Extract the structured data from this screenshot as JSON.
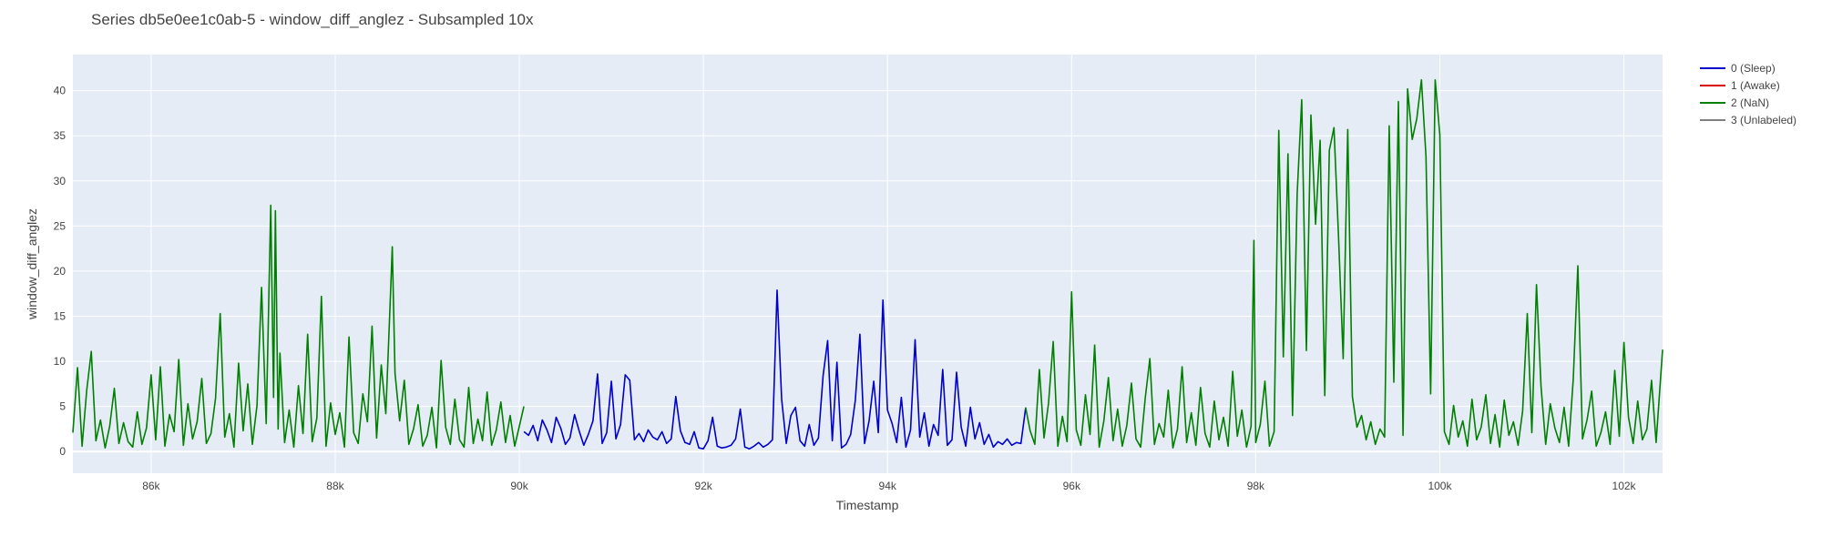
{
  "chart_data": {
    "type": "line",
    "title": "Series db5e0ee1c0ab-5 - window_diff_anglez - Subsampled 10x",
    "xlabel": "Timestamp",
    "ylabel": "window_diff_anglez",
    "xlim": [
      85150,
      102420
    ],
    "ylim": [
      -2.4,
      44
    ],
    "xticks": [
      86000,
      88000,
      90000,
      92000,
      94000,
      96000,
      98000,
      100000,
      102000
    ],
    "xtick_labels": [
      "86k",
      "88k",
      "90k",
      "92k",
      "94k",
      "96k",
      "98k",
      "100k",
      "102k"
    ],
    "yticks": [
      0,
      5,
      10,
      15,
      20,
      25,
      30,
      35,
      40
    ],
    "ytick_labels": [
      "0",
      "5",
      "10",
      "15",
      "20",
      "25",
      "30",
      "35",
      "40"
    ],
    "grid": true,
    "legend_position": "top-right, outside plot",
    "background_color": "#e5ecf6",
    "legend": [
      {
        "label": "0 (Sleep)",
        "color": "#0000cc"
      },
      {
        "label": "1 (Awake)",
        "color": "#dd0000"
      },
      {
        "label": "2 (NaN)",
        "color": "#008000"
      },
      {
        "label": "3 (Unlabeled)",
        "color": "#808080"
      }
    ],
    "series": [
      {
        "name": "2 (NaN)",
        "color": "#008000",
        "x": [
          85150,
          85200,
          85250,
          85300,
          85350,
          85400,
          85450,
          85500,
          85550,
          85600,
          85650,
          85700,
          85750,
          85800,
          85850,
          85900,
          85950,
          86000,
          86050,
          86100,
          86150,
          86200,
          86250,
          86300,
          86350,
          86400,
          86450,
          86500,
          86550,
          86600,
          86650,
          86700,
          86750,
          86800,
          86850,
          86900,
          86950,
          87000,
          87050,
          87100,
          87150,
          87200,
          87250,
          87300,
          87330,
          87350,
          87380,
          87400,
          87450,
          87500,
          87550,
          87600,
          87650,
          87700,
          87750,
          87800,
          87850,
          87900,
          87950,
          88000,
          88050,
          88100,
          88150,
          88200,
          88250,
          88300,
          88350,
          88400,
          88450,
          88500,
          88550,
          88600,
          88620,
          88650,
          88700,
          88750,
          88800,
          88850,
          88900,
          88950,
          89000,
          89050,
          89100,
          89150,
          89200,
          89250,
          89300,
          89350,
          89400,
          89450,
          89500,
          89550,
          89600,
          89650,
          89700,
          89750,
          89800,
          89850,
          89900,
          89950,
          90050
        ],
        "y": [
          2.1,
          9.3,
          0.6,
          6.8,
          11.1,
          1.2,
          3.5,
          0.4,
          2.8,
          7.0,
          0.9,
          3.2,
          1.1,
          0.5,
          4.4,
          0.8,
          2.6,
          8.5,
          1.3,
          9.4,
          0.6,
          4.1,
          2.2,
          10.2,
          0.7,
          5.3,
          1.4,
          3.3,
          8.1,
          0.9,
          2.0,
          5.9,
          15.3,
          1.6,
          4.2,
          0.5,
          9.8,
          2.3,
          7.5,
          0.8,
          5.1,
          18.2,
          3.1,
          27.3,
          6.0,
          26.7,
          2.5,
          10.9,
          1.0,
          4.6,
          0.5,
          7.3,
          2.0,
          13.0,
          1.1,
          3.7,
          17.2,
          0.6,
          5.4,
          1.9,
          4.3,
          0.5,
          12.7,
          2.1,
          0.9,
          6.4,
          3.3,
          13.9,
          1.5,
          9.6,
          4.2,
          17.3,
          22.7,
          8.7,
          3.4,
          7.9,
          0.8,
          2.5,
          5.2,
          0.6,
          1.8,
          4.9,
          0.4,
          10.1,
          2.7,
          0.8,
          5.8,
          1.3,
          0.5,
          7.1,
          0.9,
          3.6,
          1.2,
          6.6,
          0.7,
          2.4,
          5.5,
          1.0,
          4.0,
          0.6,
          5.0
        ]
      },
      {
        "name": "0 (Sleep)",
        "color": "#0000cc",
        "x": [
          90050,
          90100,
          90150,
          90200,
          90250,
          90300,
          90350,
          90400,
          90450,
          90500,
          90550,
          90600,
          90650,
          90700,
          90750,
          90800,
          90850,
          90900,
          90950,
          91000,
          91050,
          91100,
          91150,
          91200,
          91250,
          91300,
          91350,
          91400,
          91450,
          91500,
          91550,
          91600,
          91650,
          91700,
          91750,
          91800,
          91850,
          91900,
          91950,
          92000,
          92050,
          92100,
          92150,
          92200,
          92250,
          92300,
          92350,
          92400,
          92450,
          92500,
          92550,
          92600,
          92650,
          92700,
          92750,
          92800,
          92850,
          92900,
          92950,
          93000,
          93050,
          93100,
          93150,
          93200,
          93250,
          93300,
          93350,
          93400,
          93450,
          93500,
          93550,
          93600,
          93650,
          93700,
          93750,
          93800,
          93850,
          93900,
          93950,
          94000,
          94050,
          94100,
          94150,
          94200,
          94250,
          94300,
          94350,
          94400,
          94450,
          94500,
          94550,
          94600,
          94650,
          94700,
          94750,
          94800,
          94850,
          94900,
          94950,
          95000,
          95050,
          95100,
          95150,
          95200,
          95250,
          95300,
          95350,
          95400,
          95450,
          95500
        ],
        "y": [
          2.2,
          1.8,
          2.9,
          1.2,
          3.5,
          2.4,
          1.0,
          3.8,
          2.6,
          0.8,
          1.5,
          4.1,
          2.3,
          0.7,
          1.9,
          3.4,
          8.6,
          0.9,
          2.1,
          7.8,
          1.4,
          3.0,
          8.5,
          7.9,
          1.3,
          2.0,
          1.1,
          2.4,
          1.6,
          1.3,
          2.2,
          0.9,
          1.4,
          6.1,
          2.3,
          1.0,
          0.8,
          2.2,
          0.4,
          0.3,
          1.2,
          3.8,
          0.6,
          0.4,
          0.5,
          0.7,
          1.4,
          4.7,
          0.5,
          0.3,
          0.6,
          1.0,
          0.5,
          0.8,
          1.3,
          17.9,
          5.8,
          0.9,
          4.0,
          4.9,
          1.2,
          0.6,
          3.0,
          0.7,
          1.5,
          8.4,
          12.3,
          1.2,
          9.9,
          0.4,
          0.8,
          1.9,
          5.7,
          13.0,
          0.9,
          3.4,
          7.8,
          2.1,
          16.8,
          4.6,
          3.1,
          1.0,
          6.0,
          0.5,
          2.4,
          12.4,
          1.6,
          4.3,
          0.6,
          3.0,
          1.8,
          9.1,
          0.7,
          1.3,
          8.8,
          2.7,
          0.6,
          4.9,
          1.4,
          3.2,
          0.8,
          1.9,
          0.5,
          1.1,
          0.8,
          1.4,
          0.7,
          1.0,
          0.9,
          4.8
        ]
      },
      {
        "name": "2 (NaN)",
        "color": "#008000",
        "x": [
          95500,
          95550,
          95600,
          95650,
          95700,
          95750,
          95800,
          95850,
          95900,
          95950,
          96000,
          96050,
          96100,
          96150,
          96200,
          96250,
          96300,
          96350,
          96400,
          96450,
          96500,
          96550,
          96600,
          96650,
          96700,
          96750,
          96800,
          96850,
          96900,
          96950,
          97000,
          97050,
          97100,
          97150,
          97200,
          97250,
          97300,
          97350,
          97400,
          97450,
          97500,
          97550,
          97600,
          97650,
          97700,
          97750,
          97800,
          97850,
          97900,
          97950,
          97980,
          98000,
          98050,
          98100,
          98150,
          98200,
          98250,
          98300,
          98350,
          98400,
          98450,
          98500,
          98550,
          98600,
          98650,
          98700,
          98750,
          98800,
          98850,
          98900,
          98950,
          99000,
          99050,
          99100,
          99150,
          99200,
          99250,
          99300,
          99350,
          99400,
          99450,
          99500,
          99550,
          99600,
          99650,
          99700,
          99750,
          99800,
          99850,
          99900,
          99950,
          100000,
          100050,
          100100,
          100150,
          100200,
          100250,
          100300,
          100350,
          100400,
          100450,
          100500,
          100550,
          100600,
          100650,
          100700,
          100750,
          100800,
          100850,
          100900,
          100950,
          101000,
          101050,
          101100,
          101150,
          101200,
          101250,
          101300,
          101350,
          101400,
          101450,
          101500,
          101550,
          101600,
          101650,
          101700,
          101750,
          101800,
          101850,
          101900,
          101950,
          102000,
          102050,
          102100,
          102150,
          102200,
          102250,
          102300,
          102350,
          102420
        ],
        "y": [
          4.9,
          2.3,
          0.8,
          9.1,
          1.5,
          5.4,
          12.2,
          0.6,
          3.9,
          1.1,
          17.7,
          2.4,
          0.7,
          6.3,
          1.9,
          11.8,
          0.5,
          3.4,
          8.2,
          1.2,
          4.7,
          0.6,
          2.9,
          7.6,
          1.4,
          0.5,
          5.9,
          10.3,
          0.8,
          3.1,
          1.6,
          6.8,
          0.4,
          2.5,
          9.4,
          1.0,
          4.3,
          0.7,
          7.1,
          2.0,
          0.5,
          5.6,
          1.3,
          3.8,
          0.6,
          8.9,
          1.7,
          4.6,
          0.5,
          2.8,
          23.4,
          1.0,
          3.0,
          7.8,
          0.6,
          2.2,
          35.6,
          10.5,
          33.0,
          4.0,
          28.6,
          39.0,
          11.2,
          37.3,
          25.2,
          34.5,
          6.2,
          33.4,
          35.9,
          23.8,
          10.3,
          35.7,
          6.1,
          2.7,
          4.0,
          1.3,
          3.3,
          0.8,
          2.5,
          1.6,
          36.1,
          7.7,
          38.8,
          1.8,
          40.2,
          34.6,
          36.9,
          41.2,
          32.7,
          6.4,
          41.2,
          35.1,
          2.2,
          0.8,
          5.1,
          1.6,
          3.4,
          0.6,
          5.8,
          1.3,
          2.7,
          6.3,
          0.9,
          4.1,
          0.5,
          5.7,
          1.8,
          3.3,
          0.7,
          4.5,
          15.3,
          2.1,
          18.5,
          7.2,
          0.8,
          5.3,
          2.6,
          1.0,
          4.9,
          0.6,
          8.1,
          20.6,
          1.4,
          3.5,
          6.7,
          0.6,
          2.1,
          4.4,
          0.8,
          9.0,
          1.7,
          12.1,
          3.8,
          0.9,
          5.6,
          1.3,
          2.5,
          7.9,
          1.0,
          11.3
        ]
      }
    ]
  }
}
